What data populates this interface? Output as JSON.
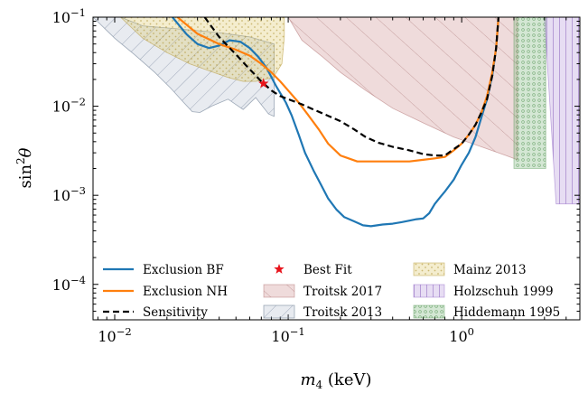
{
  "chart_data": {
    "type": "line",
    "xlabel": "m_4 (keV)",
    "ylabel": "sin^2 θ",
    "xscale": "log",
    "yscale": "log",
    "xlim": [
      0.0075,
      4.8
    ],
    "ylim": [
      4e-05,
      0.1
    ],
    "x_ticks": [
      {
        "value": 0.01,
        "base": "10",
        "exp": "−2"
      },
      {
        "value": 0.1,
        "base": "10",
        "exp": "−1"
      },
      {
        "value": 1,
        "base": "10",
        "exp": "0"
      }
    ],
    "y_ticks": [
      {
        "value": 0.0001,
        "base": "10",
        "exp": "−4"
      },
      {
        "value": 0.001,
        "base": "10",
        "exp": "−3"
      },
      {
        "value": 0.01,
        "base": "10",
        "exp": "−2"
      },
      {
        "value": 0.1,
        "base": "10",
        "exp": "−1"
      }
    ],
    "grid": false,
    "legend_position": "lower-center",
    "series": [
      {
        "name": "Exclusion BF",
        "type": "line",
        "color": "#1f77b4",
        "style": "solid",
        "x": [
          0.0215,
          0.026,
          0.03,
          0.035,
          0.04,
          0.046,
          0.053,
          0.06,
          0.067,
          0.075,
          0.085,
          0.097,
          0.105,
          0.115,
          0.125,
          0.14,
          0.155,
          0.17,
          0.19,
          0.21,
          0.24,
          0.27,
          0.3,
          0.35,
          0.4,
          0.45,
          0.5,
          0.55,
          0.6,
          0.65,
          0.7,
          0.75,
          0.8,
          0.9,
          1.0,
          1.1,
          1.2,
          1.3,
          1.4,
          1.5,
          1.58,
          1.63
        ],
        "y": [
          0.1,
          0.064,
          0.05,
          0.045,
          0.048,
          0.055,
          0.053,
          0.045,
          0.036,
          0.027,
          0.017,
          0.011,
          0.0078,
          0.0048,
          0.003,
          0.0019,
          0.0013,
          0.00092,
          0.00069,
          0.00057,
          0.00051,
          0.00046,
          0.00045,
          0.00047,
          0.00048,
          0.0005,
          0.00052,
          0.00054,
          0.00055,
          0.00063,
          0.0008,
          0.00095,
          0.0011,
          0.0015,
          0.0022,
          0.003,
          0.0045,
          0.0075,
          0.012,
          0.022,
          0.045,
          0.1
        ]
      },
      {
        "name": "Exclusion NH",
        "type": "line",
        "color": "#ff7f0e",
        "style": "solid",
        "x": [
          0.023,
          0.03,
          0.04,
          0.05,
          0.06,
          0.07,
          0.08,
          0.09,
          0.1,
          0.115,
          0.13,
          0.15,
          0.17,
          0.2,
          0.25,
          0.3,
          0.4,
          0.5,
          0.6,
          0.7,
          0.8,
          0.9,
          1.0,
          1.1,
          1.2,
          1.3,
          1.4,
          1.5,
          1.58,
          1.63
        ],
        "y": [
          0.1,
          0.065,
          0.05,
          0.043,
          0.037,
          0.03,
          0.024,
          0.019,
          0.015,
          0.011,
          0.008,
          0.0055,
          0.0038,
          0.0028,
          0.0024,
          0.0024,
          0.0024,
          0.0024,
          0.0025,
          0.0026,
          0.0027,
          0.0032,
          0.0038,
          0.0048,
          0.0062,
          0.0085,
          0.013,
          0.024,
          0.045,
          0.1
        ]
      },
      {
        "name": "Sensitivity",
        "type": "line",
        "color": "#000000",
        "style": "dashed",
        "x": [
          0.033,
          0.04,
          0.05,
          0.06,
          0.07,
          0.08,
          0.09,
          0.1,
          0.12,
          0.14,
          0.17,
          0.2,
          0.24,
          0.28,
          0.33,
          0.4,
          0.5,
          0.6,
          0.7,
          0.8,
          0.9,
          1.0,
          1.1,
          1.2,
          1.3,
          1.4,
          1.5,
          1.58,
          1.63
        ],
        "y": [
          0.1,
          0.06,
          0.038,
          0.026,
          0.019,
          0.015,
          0.013,
          0.012,
          0.0105,
          0.0092,
          0.0078,
          0.0068,
          0.0055,
          0.0045,
          0.0039,
          0.0035,
          0.0032,
          0.0029,
          0.0028,
          0.0028,
          0.0033,
          0.0038,
          0.0048,
          0.0062,
          0.0085,
          0.012,
          0.022,
          0.045,
          0.1
        ]
      },
      {
        "name": "Best Fit",
        "type": "scatter",
        "color": "#e8141c",
        "marker": "star",
        "x": [
          0.072
        ],
        "y": [
          0.018
        ]
      },
      {
        "name": "Troitsk 2017",
        "type": "area",
        "color": "#c77c7c",
        "hatch": "\\",
        "x": [
          0.1,
          0.12,
          0.16,
          0.2,
          0.28,
          0.4,
          0.6,
          0.9,
          1.3,
          1.8,
          2.1,
          2.1,
          0.1
        ],
        "y": [
          0.1,
          0.055,
          0.035,
          0.024,
          0.015,
          0.0095,
          0.0065,
          0.0045,
          0.0035,
          0.0028,
          0.0025,
          0.1,
          0.1
        ]
      },
      {
        "name": "Troitsk 2013",
        "type": "area",
        "color": "#9aa7b8",
        "hatch": "/",
        "x": [
          0.0075,
          0.01,
          0.013,
          0.017,
          0.021,
          0.025,
          0.028,
          0.031,
          0.036,
          0.045,
          0.055,
          0.065,
          0.077,
          0.083,
          0.083,
          0.06,
          0.04,
          0.025,
          0.0145,
          0.0108,
          0.0075
        ],
        "y": [
          0.1,
          0.058,
          0.038,
          0.024,
          0.016,
          0.011,
          0.0087,
          0.0085,
          0.01,
          0.012,
          0.0092,
          0.0125,
          0.0082,
          0.0077,
          0.05,
          0.06,
          0.067,
          0.073,
          0.08,
          0.1,
          0.1
        ]
      },
      {
        "name": "Mainz 2013",
        "type": "area",
        "color": "#cdb24a",
        "hatch": "dots",
        "x": [
          0.0108,
          0.0145,
          0.02,
          0.027,
          0.035,
          0.045,
          0.055,
          0.065,
          0.082,
          0.092,
          0.095,
          0.095,
          0.0108
        ],
        "y": [
          0.1,
          0.058,
          0.04,
          0.03,
          0.025,
          0.021,
          0.019,
          0.019,
          0.021,
          0.03,
          0.06,
          0.1,
          0.1
        ]
      },
      {
        "name": "Holzschuh 1999",
        "type": "area",
        "color": "#b08fd6",
        "hatch": "|",
        "x": [
          3.0,
          4.8,
          4.8,
          3.5,
          3.0
        ],
        "y": [
          0.1,
          0.1,
          0.0008,
          0.0008,
          0.1
        ]
      },
      {
        "name": "Hiddemann 1995",
        "type": "area",
        "color": "#6fb06f",
        "hatch": "o",
        "x": [
          2.0,
          3.05,
          3.05,
          2.0,
          2.0
        ],
        "y": [
          0.1,
          0.1,
          0.002,
          0.002,
          0.1
        ]
      }
    ]
  }
}
